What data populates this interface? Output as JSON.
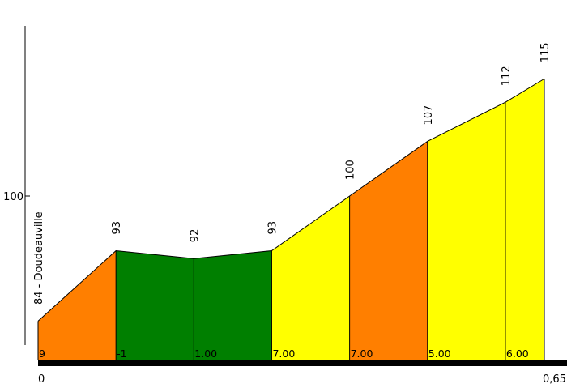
{
  "chart_data": {
    "type": "area",
    "title": "",
    "xlabel": "",
    "ylabel": "",
    "start_label": "84 - Doudeauville",
    "ylim": [
      78,
      122
    ],
    "xlim": [
      0,
      0.65
    ],
    "y_ticks": [
      {
        "value": 100,
        "label": "100"
      }
    ],
    "x_ticks": [
      {
        "value": 0,
        "label": "0"
      },
      {
        "value": 0.65,
        "label": "0,65"
      }
    ],
    "points": [
      {
        "x": 0,
        "elevation": 84,
        "label": ""
      },
      {
        "x": 0.1,
        "elevation": 93,
        "label": "93"
      },
      {
        "x": 0.2,
        "elevation": 92,
        "label": "92"
      },
      {
        "x": 0.3,
        "elevation": 93,
        "label": "93"
      },
      {
        "x": 0.4,
        "elevation": 100,
        "label": "100"
      },
      {
        "x": 0.5,
        "elevation": 107,
        "label": "107"
      },
      {
        "x": 0.6,
        "elevation": 112,
        "label": "112"
      },
      {
        "x": 0.65,
        "elevation": 115,
        "label": "115"
      }
    ],
    "segments": [
      {
        "grade_label": "9",
        "color": "#ff7f00"
      },
      {
        "grade_label": "-1",
        "color": "#007f00"
      },
      {
        "grade_label": "1.00",
        "color": "#007f00"
      },
      {
        "grade_label": "7.00",
        "color": "#ffff00"
      },
      {
        "grade_label": "7.00",
        "color": "#ff7f00"
      },
      {
        "grade_label": "5.00",
        "color": "#ffff00"
      },
      {
        "grade_label": "6.00",
        "color": "#ffff00"
      }
    ],
    "grid": false,
    "legend": "none"
  }
}
